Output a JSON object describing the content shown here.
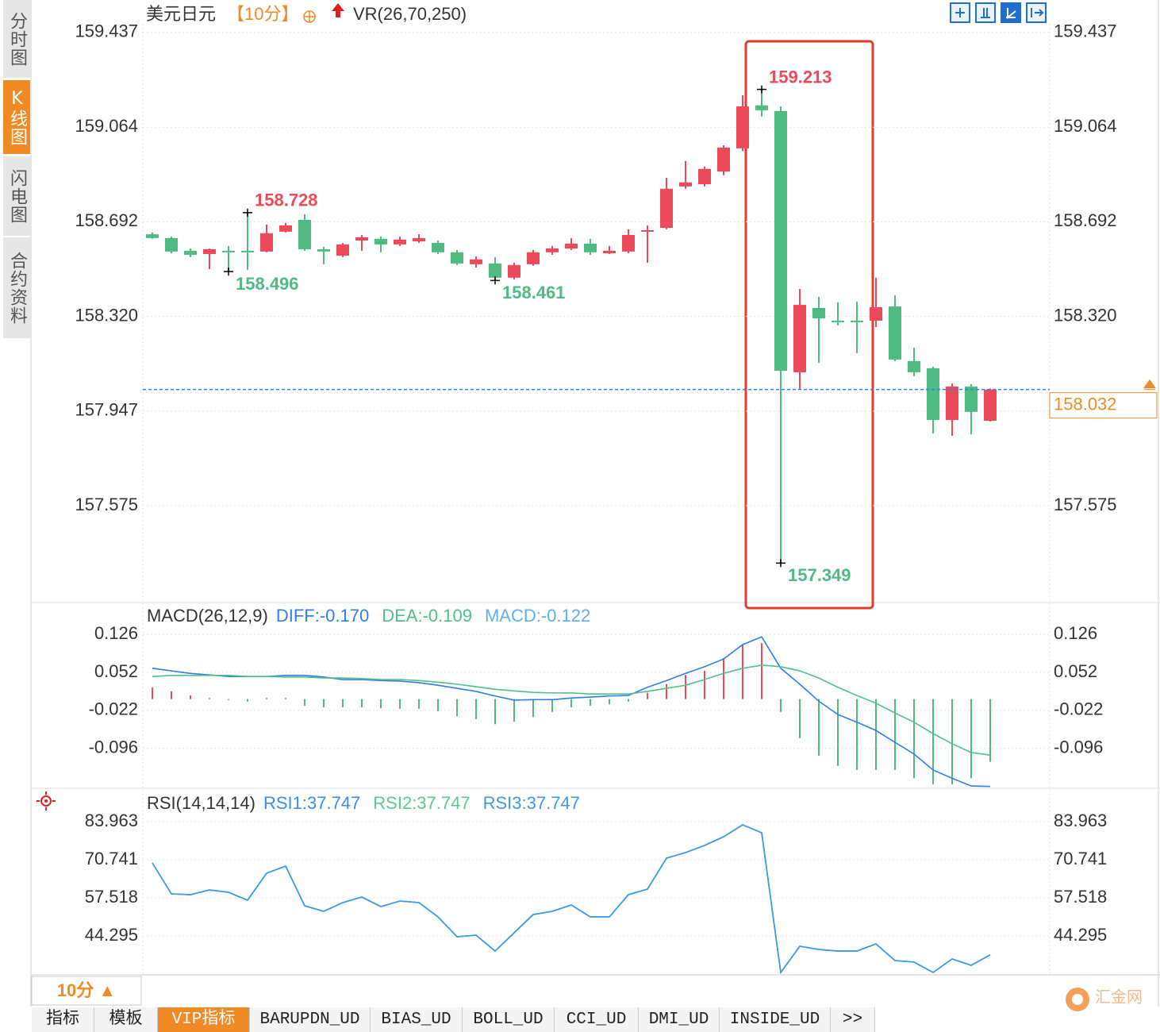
{
  "header": {
    "symbol": "美元日元",
    "period": "【10分】",
    "indicator": "VR(26,70,250)"
  },
  "sidebar": {
    "tabs": [
      "分时图",
      "K线图",
      "闪电图",
      "合约资料"
    ]
  },
  "chart_data": [
    {
      "type": "candlestick",
      "up_color": "#ec4a5a",
      "down_color": "#4fba82",
      "ylim": [
        157.222,
        159.471
      ],
      "yticks": [
        159.437,
        159.064,
        158.692,
        {
          "value": 158.32,
          "label": "158.320"
        },
        157.947,
        157.575
      ],
      "open": [
        158.643,
        158.628,
        158.578,
        158.565,
        158.578,
        158.578,
        158.575,
        158.653,
        158.7,
        158.584,
        158.559,
        158.618,
        158.625,
        158.603,
        158.615,
        158.609,
        158.572,
        158.525,
        158.528,
        158.472,
        158.525,
        158.572,
        158.587,
        158.606,
        158.568,
        158.575,
        158.653,
        158.668,
        158.831,
        158.84,
        158.89,
        158.981,
        159.15,
        159.128,
        158.1,
        158.353,
        158.303,
        158.303,
        158.303,
        158.359,
        158.144,
        158.116,
        157.912,
        158.044,
        157.909
      ],
      "high": [
        158.65,
        158.634,
        158.587,
        158.587,
        158.597,
        158.728,
        158.681,
        158.687,
        158.722,
        158.593,
        158.609,
        158.64,
        158.634,
        158.634,
        158.643,
        158.618,
        158.581,
        158.556,
        158.553,
        158.531,
        158.581,
        158.597,
        158.628,
        158.625,
        158.597,
        158.662,
        158.678,
        158.865,
        158.931,
        158.909,
        158.993,
        159.19,
        159.213,
        159.146,
        158.428,
        158.397,
        158.375,
        158.378,
        158.472,
        158.403,
        158.197,
        158.122,
        158.056,
        158.053,
        158.036
      ],
      "low": [
        158.625,
        158.568,
        158.553,
        158.506,
        158.496,
        158.503,
        158.572,
        158.65,
        158.578,
        158.525,
        158.553,
        158.578,
        158.572,
        158.597,
        158.609,
        158.565,
        158.522,
        158.512,
        158.461,
        158.465,
        158.519,
        158.562,
        158.581,
        158.562,
        158.565,
        158.568,
        158.531,
        158.662,
        158.822,
        158.831,
        158.875,
        158.971,
        159.106,
        157.349,
        158.031,
        158.137,
        158.284,
        158.175,
        158.278,
        158.144,
        158.084,
        157.859,
        157.85,
        157.856,
        157.906
      ],
      "close": [
        158.628,
        158.575,
        158.562,
        158.584,
        158.575,
        158.572,
        158.647,
        158.678,
        158.584,
        158.575,
        158.603,
        158.631,
        158.603,
        158.622,
        158.628,
        158.572,
        158.528,
        158.544,
        158.472,
        158.522,
        158.572,
        158.587,
        158.606,
        158.572,
        158.578,
        158.64,
        158.659,
        158.822,
        158.847,
        158.9,
        158.984,
        159.146,
        159.131,
        158.106,
        158.365,
        158.312,
        158.297,
        158.3,
        158.356,
        158.15,
        158.1,
        157.912,
        158.044,
        157.944,
        158.032
      ],
      "annotations": [
        159.213,
        158.728,
        158.496,
        158.461,
        157.349
      ],
      "last_price": 158.032,
      "last_price_color": "#f08a24",
      "last_line_color": "#2f7fe8"
    },
    {
      "type": "macd",
      "title": "MACD(26,12,9)",
      "ylim": [
        -0.172,
        0.14
      ],
      "yticks": [
        0.126,
        0.052,
        -0.022,
        -0.096
      ],
      "series": [
        {
          "name": "DIFF:-0.170",
          "color": "#2f7fe8",
          "values": [
            0.06,
            0.055,
            0.05,
            0.047,
            0.044,
            0.044,
            0.044,
            0.046,
            0.046,
            0.043,
            0.038,
            0.038,
            0.036,
            0.035,
            0.032,
            0.027,
            0.021,
            0.015,
            0.006,
            -0.002,
            -0.001,
            -0.001,
            0.002,
            0.004,
            0.006,
            0.007,
            0.023,
            0.036,
            0.05,
            0.063,
            0.078,
            0.106,
            0.121,
            0.06,
            0.029,
            -0.004,
            -0.03,
            -0.045,
            -0.061,
            -0.084,
            -0.107,
            -0.138,
            -0.154,
            -0.169,
            -0.17
          ]
        },
        {
          "name": "DEA:-0.109",
          "color": "#4fc08a",
          "values": [
            0.044,
            0.046,
            0.046,
            0.046,
            0.046,
            0.044,
            0.044,
            0.043,
            0.043,
            0.041,
            0.041,
            0.04,
            0.038,
            0.038,
            0.036,
            0.033,
            0.029,
            0.024,
            0.019,
            0.016,
            0.013,
            0.012,
            0.012,
            0.01,
            0.01,
            0.01,
            0.015,
            0.021,
            0.027,
            0.038,
            0.05,
            0.06,
            0.066,
            0.063,
            0.055,
            0.041,
            0.023,
            0.007,
            -0.008,
            -0.027,
            -0.045,
            -0.067,
            -0.087,
            -0.104,
            -0.109
          ]
        }
      ],
      "histogram": {
        "name": "MACD:-0.122",
        "color": "#5ab0f0",
        "up_color": "#ec4a5a",
        "down_color": "#4fba82",
        "values": [
          0.023,
          0.015,
          0.007,
          0.002,
          -0.002,
          -0.005,
          0.002,
          0.002,
          -0.013,
          -0.016,
          -0.016,
          -0.016,
          -0.018,
          -0.019,
          -0.019,
          -0.024,
          -0.033,
          -0.039,
          -0.049,
          -0.044,
          -0.035,
          -0.025,
          -0.016,
          -0.013,
          -0.01,
          -0.005,
          0.012,
          0.029,
          0.047,
          0.055,
          0.08,
          0.106,
          0.109,
          -0.025,
          -0.076,
          -0.11,
          -0.13,
          -0.138,
          -0.138,
          -0.138,
          -0.154,
          -0.166,
          -0.166,
          -0.154,
          -0.122
        ]
      }
    },
    {
      "type": "line",
      "title": "RSI(14,14,14)",
      "ylim": [
        30.8,
        88.1
      ],
      "yticks": [
        83.963,
        70.741,
        57.518,
        44.295
      ],
      "series": [
        {
          "name": "RSI1:37.747",
          "color": "#3a8ee6",
          "values": [
            69.64,
            58.9,
            58.62,
            60.27,
            59.45,
            56.69,
            66.06,
            68.54,
            54.76,
            52.84,
            55.87,
            57.79,
            54.49,
            56.42,
            55.87,
            50.91,
            44.02,
            44.57,
            39.06,
            45.4,
            51.73,
            52.84,
            55.04,
            50.91,
            50.91,
            58.62,
            60.55,
            71.29,
            73.22,
            75.7,
            78.73,
            82.86,
            80.1,
            31.63,
            40.72,
            39.61,
            39.06,
            39.06,
            41.54,
            35.76,
            35.21,
            31.63,
            36.31,
            34.11,
            37.747
          ]
        },
        {
          "name": "RSI2:37.747",
          "color": "#5cc88d",
          "values": [
            69.64,
            58.9,
            58.62,
            60.27,
            59.45,
            56.69,
            66.06,
            68.54,
            54.76,
            52.84,
            55.87,
            57.79,
            54.49,
            56.42,
            55.87,
            50.91,
            44.02,
            44.57,
            39.06,
            45.4,
            51.73,
            52.84,
            55.04,
            50.91,
            50.91,
            58.62,
            60.55,
            71.29,
            73.22,
            75.7,
            78.73,
            82.86,
            80.1,
            31.63,
            40.72,
            39.61,
            39.06,
            39.06,
            41.54,
            35.76,
            35.21,
            31.63,
            36.31,
            34.11,
            37.747
          ]
        },
        {
          "name": "RSI3:37.747",
          "color": "#3a9ae8",
          "values": [
            69.64,
            58.9,
            58.62,
            60.27,
            59.45,
            56.69,
            66.06,
            68.54,
            54.76,
            52.84,
            55.87,
            57.79,
            54.49,
            56.42,
            55.87,
            50.91,
            44.02,
            44.57,
            39.06,
            45.4,
            51.73,
            52.84,
            55.04,
            50.91,
            50.91,
            58.62,
            60.55,
            71.29,
            73.22,
            75.7,
            78.73,
            82.86,
            80.1,
            31.63,
            40.72,
            39.61,
            39.06,
            39.06,
            41.54,
            35.76,
            35.21,
            31.63,
            36.31,
            34.11,
            37.747
          ]
        }
      ]
    }
  ],
  "footer": {
    "period_button": "10分 ▲",
    "tabs": [
      "指标",
      "模板",
      "VIP指标",
      "BARUPDN_UD",
      "BIAS_UD",
      "BOLL_UD",
      "CCI_UD",
      "DMI_UD",
      "INSIDE_UD",
      ">>"
    ]
  },
  "logo": "汇金网"
}
